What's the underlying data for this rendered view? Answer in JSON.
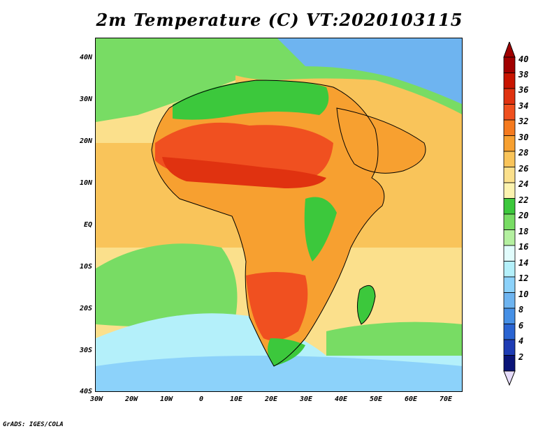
{
  "title": "2m Temperature (C) VT:2020103115",
  "credit": "GrADS: IGES/COLA",
  "lat_labels": [
    "40N",
    "30N",
    "20N",
    "10N",
    "EQ",
    "10S",
    "20S",
    "30S",
    "40S"
  ],
  "lon_labels": [
    "30W",
    "20W",
    "10W",
    "0",
    "10E",
    "20E",
    "30E",
    "40E",
    "50E",
    "60E",
    "70E"
  ],
  "colorbar": {
    "labels": [
      "40",
      "38",
      "36",
      "34",
      "32",
      "30",
      "28",
      "26",
      "24",
      "22",
      "20",
      "18",
      "16",
      "14",
      "12",
      "10",
      "8",
      "6",
      "4",
      "2"
    ],
    "colors_top_to_bottom": [
      "#a10000",
      "#c81400",
      "#e03210",
      "#f0501e",
      "#f57a1e",
      "#f7a030",
      "#f9c45a",
      "#fbe08c",
      "#fcf3b0",
      "#3cc83c",
      "#78dc64",
      "#b4f0a0",
      "#e1fcfc",
      "#b4f0fa",
      "#8cd2fa",
      "#6eb4f0",
      "#4690e6",
      "#2a64d2",
      "#1e3cb4",
      "#0a1478"
    ],
    "arrow_top_color": "#a00000",
    "arrow_bottom_color": "#e6dcfa"
  },
  "map_colors": {
    "ocean_warm": "#f9c45a",
    "ocean_mid": "#fbe08c",
    "ocean_cool_green": "#78dc64",
    "ocean_cold": "#b4f0fa",
    "ocean_colder": "#8cd2fa",
    "land_hot": "#f05020",
    "land_hotter": "#e03210",
    "land_warm": "#f7a030",
    "land_green": "#3cc83c",
    "europe_blue": "#6eb4f0"
  }
}
